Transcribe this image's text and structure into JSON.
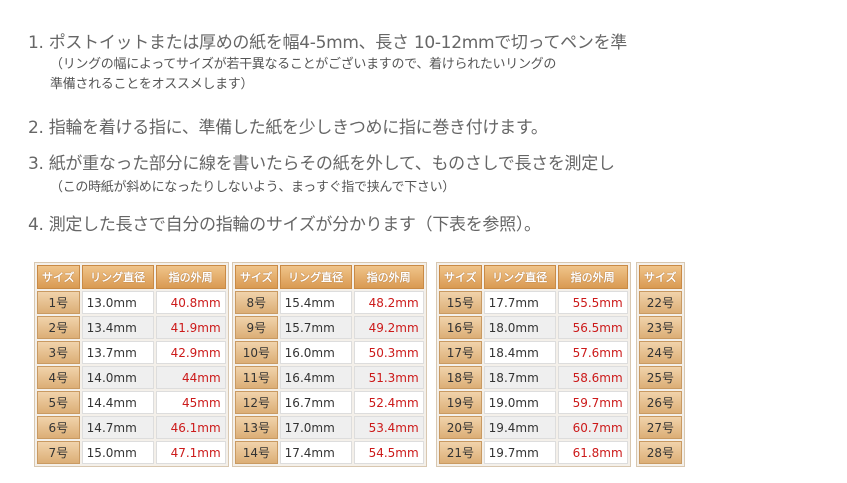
{
  "steps": [
    {
      "text": "1. ポストイットまたは厚めの紙を幅4-5mm、長さ 10-12mmで切ってペンを準",
      "notes": [
        "（リングの幅によってサイズが若干異なることがございますので、着けられたいリングの",
        "準備されることをオススメします）"
      ]
    },
    {
      "text": "2. 指輪を着ける指に、準備した紙を少しきつめに指に巻き付けます。"
    },
    {
      "text": "3. 紙が重なった部分に線を書いたらその紙を外して、ものさしで長さを測定し",
      "notes": [
        "（この時紙が斜めになったりしないよう、まっすぐ指で挟んで下さい）"
      ]
    },
    {
      "text": "4. 測定した長さで自分の指輪のサイズが分かります（下表を参照）。"
    }
  ],
  "tables": [
    {
      "headers": [
        "サイズ",
        "リング直径",
        "指の外周"
      ],
      "rows": [
        [
          "1号",
          "13.0mm",
          "40.8mm"
        ],
        [
          "2号",
          "13.4mm",
          "41.9mm"
        ],
        [
          "3号",
          "13.7mm",
          "42.9mm"
        ],
        [
          "4号",
          "14.0mm",
          "44mm"
        ],
        [
          "5号",
          "14.4mm",
          "45mm"
        ],
        [
          "6号",
          "14.7mm",
          "46.1mm"
        ],
        [
          "7号",
          "15.0mm",
          "47.1mm"
        ]
      ]
    },
    {
      "headers": [
        "サイズ",
        "リング直径",
        "指の外周"
      ],
      "rows": [
        [
          "8号",
          "15.4mm",
          "48.2mm"
        ],
        [
          "9号",
          "15.7mm",
          "49.2mm"
        ],
        [
          "10号",
          "16.0mm",
          "50.3mm"
        ],
        [
          "11号",
          "16.4mm",
          "51.3mm"
        ],
        [
          "12号",
          "16.7mm",
          "52.4mm"
        ],
        [
          "13号",
          "17.0mm",
          "53.4mm"
        ],
        [
          "14号",
          "17.4mm",
          "54.5mm"
        ]
      ]
    },
    {
      "headers": [
        "サイズ",
        "リング直径",
        "指の外周"
      ],
      "rows": [
        [
          "15号",
          "17.7mm",
          "55.5mm"
        ],
        [
          "16号",
          "18.0mm",
          "56.5mm"
        ],
        [
          "17号",
          "18.4mm",
          "57.6mm"
        ],
        [
          "18号",
          "18.7mm",
          "58.6mm"
        ],
        [
          "19号",
          "19.0mm",
          "59.7mm"
        ],
        [
          "20号",
          "19.4mm",
          "60.7mm"
        ],
        [
          "21号",
          "19.7mm",
          "61.8mm"
        ]
      ]
    },
    {
      "headers": [
        "サイズ"
      ],
      "rows": [
        [
          "22号"
        ],
        [
          "23号"
        ],
        [
          "24号"
        ],
        [
          "25号"
        ],
        [
          "26号"
        ],
        [
          "27号"
        ],
        [
          "28号"
        ]
      ]
    }
  ]
}
